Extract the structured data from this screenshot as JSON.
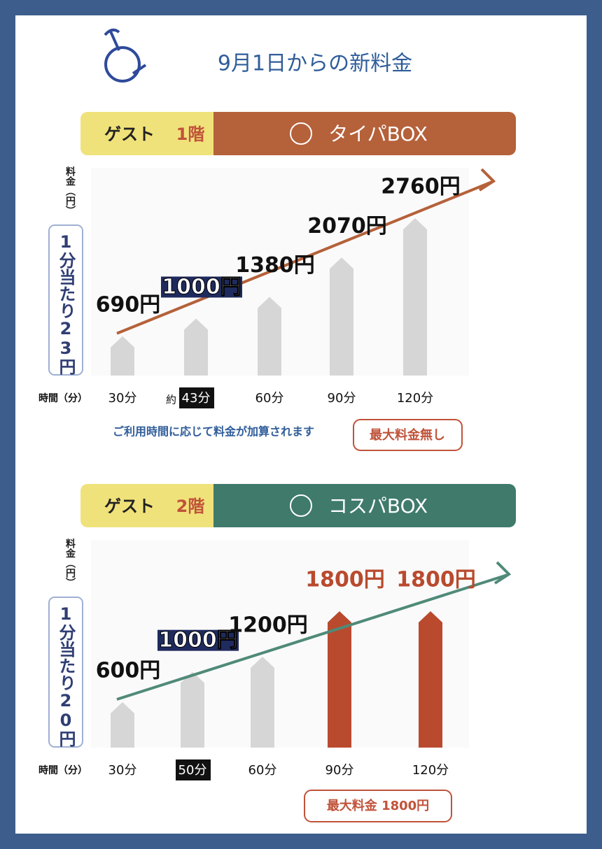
{
  "title": "9月1日からの新料金",
  "chart_data": [
    {
      "type": "bar",
      "guest_label": "ゲスト",
      "floor": "1階",
      "box": "タイパBOX",
      "y_label": "料金（円）",
      "rate_label": "1分当たり23円",
      "x_label": "時間（分）",
      "categories": [
        "30分",
        "43分",
        "60分",
        "90分",
        "120分"
      ],
      "approx_label": "約",
      "highlight_index": 1,
      "values": [
        690,
        1000,
        1380,
        2070,
        2760
      ],
      "value_labels": [
        "690円",
        "1000円",
        "1380円",
        "2070円",
        "2760円"
      ],
      "colors": [
        "#d6d6d6",
        "#d6d6d6",
        "#d6d6d6",
        "#d6d6d6",
        "#d6d6d6"
      ],
      "header_color": "#b5613a",
      "trend_color": "#b5613a",
      "note": "ご利用時間に応じて料金が加算されます",
      "badge": "最大料金無し"
    },
    {
      "type": "bar",
      "guest_label": "ゲスト",
      "floor": "2階",
      "box": "コスパBOX",
      "y_label": "料金（円）",
      "rate_label": "1分当たり20円",
      "x_label": "時間（分）",
      "categories": [
        "30分",
        "50分",
        "60分",
        "90分",
        "120分"
      ],
      "highlight_index": 1,
      "values": [
        600,
        1000,
        1200,
        1800,
        1800
      ],
      "value_labels": [
        "600円",
        "1000円",
        "1200円",
        "1800円",
        "1800円"
      ],
      "colors": [
        "#d6d6d6",
        "#d6d6d6",
        "#d6d6d6",
        "#b94a2e",
        "#b94a2e"
      ],
      "header_color": "#3f7a6b",
      "trend_color": "#4f8a78",
      "badge": "最大料金 1800円"
    }
  ]
}
